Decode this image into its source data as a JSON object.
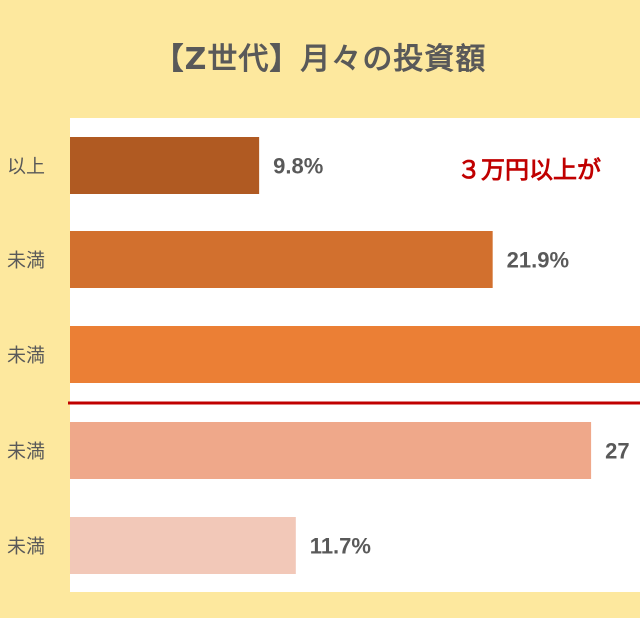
{
  "title": "【Z世代】月々の投資額",
  "chart_data": {
    "type": "bar",
    "orientation": "horizontal",
    "title": "【Z世代】月々の投資額",
    "categories": [
      "以上",
      "未満",
      "未満",
      "未満",
      "未満"
    ],
    "values": [
      9.8,
      21.9,
      29.6,
      27.0,
      11.7
    ],
    "value_labels": [
      "9.8%",
      "21.9%",
      "",
      "27",
      "11.7%"
    ],
    "colors": [
      "#B05A22",
      "#D2702E",
      "#EB7F35",
      "#EFA88A",
      "#F2C8B8"
    ],
    "xlim": [
      0,
      31
    ],
    "grid": false,
    "annotation": "３万円以上が",
    "divider_color": "#C00000"
  }
}
